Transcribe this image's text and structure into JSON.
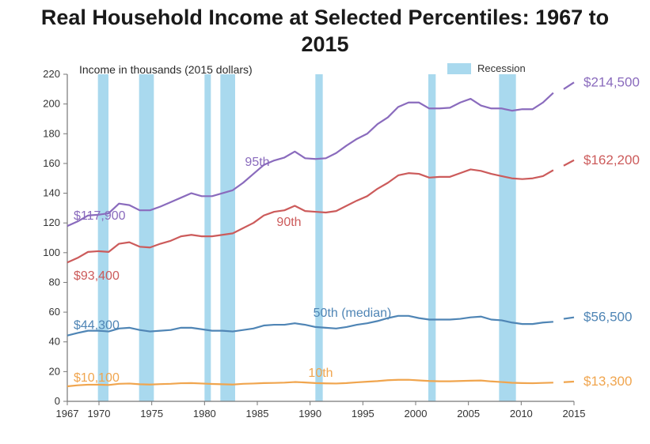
{
  "title": "Real Household Income at Selected Percentiles: 1967 to 2015",
  "subtitle": "Income in thousands (2015 dollars)",
  "legend": {
    "label": "Recession",
    "swatch_color": "#a9d9ee"
  },
  "chart": {
    "type": "line",
    "background_color": "#ffffff",
    "plot_bg": "#ffffff",
    "axis_color": "#777777",
    "tick_color": "#777777",
    "xlim": [
      1967,
      2015
    ],
    "ylim": [
      0,
      220
    ],
    "xticks": [
      1967,
      1970,
      1975,
      1980,
      1985,
      1990,
      1995,
      2000,
      2005,
      2010,
      2015
    ],
    "yticks": [
      0,
      20,
      40,
      60,
      80,
      100,
      120,
      140,
      160,
      180,
      200,
      220
    ],
    "line_width": 2.2,
    "recessions": [
      {
        "start": 1969.9,
        "end": 1970.9
      },
      {
        "start": 1973.8,
        "end": 1975.2
      },
      {
        "start": 1980.0,
        "end": 1980.6
      },
      {
        "start": 1981.5,
        "end": 1982.9
      },
      {
        "start": 1990.5,
        "end": 1991.2
      },
      {
        "start": 2001.2,
        "end": 2001.9
      },
      {
        "start": 2007.9,
        "end": 2009.5
      }
    ],
    "series": {
      "p95": {
        "name": "95th",
        "color": "#8a6bbd",
        "start_value_label": "$117,900",
        "end_value_label": "$214,500",
        "values": [
          117.9,
          121.0,
          125.0,
          125.5,
          126.5,
          133.0,
          132.0,
          128.5,
          128.5,
          131.0,
          134.0,
          137.0,
          140.0,
          138.0,
          138.0,
          140.0,
          142.0,
          147.0,
          153.0,
          159.0,
          162.0,
          164.0,
          168.0,
          163.5,
          163.0,
          163.5,
          167.0,
          172.0,
          176.5,
          180.0,
          186.5,
          191.0,
          198.0,
          201.0,
          201.0,
          197.0,
          197.0,
          197.5,
          201.0,
          203.5,
          199.0,
          197.0,
          197.0,
          195.5,
          196.5,
          196.5,
          201.0,
          207.5,
          210.0,
          214.5
        ]
      },
      "p90": {
        "name": "90th",
        "color": "#cc5b5b",
        "start_value_label": "$93,400",
        "end_value_label": "$162,200",
        "values": [
          93.4,
          96.5,
          100.5,
          101.0,
          100.5,
          106.0,
          107.0,
          104.0,
          103.5,
          106.0,
          108.0,
          111.0,
          112.0,
          111.0,
          111.0,
          112.0,
          113.0,
          116.5,
          120.0,
          125.0,
          127.5,
          128.5,
          131.5,
          128.0,
          127.5,
          127.0,
          128.0,
          131.5,
          135.0,
          138.0,
          143.0,
          147.0,
          152.0,
          153.5,
          153.0,
          150.5,
          151.0,
          151.0,
          153.5,
          156.0,
          155.0,
          153.0,
          151.5,
          150.0,
          149.5,
          150.0,
          151.5,
          155.5,
          158.5,
          162.2
        ]
      },
      "p50": {
        "name": "50th (median)",
        "color": "#4f85b5",
        "start_value_label": "$44,300",
        "end_value_label": "$56,500",
        "values": [
          44.3,
          46.0,
          47.5,
          47.5,
          47.0,
          49.0,
          49.5,
          48.0,
          47.0,
          47.5,
          48.0,
          49.5,
          49.5,
          48.5,
          47.5,
          47.5,
          47.0,
          48.0,
          49.0,
          51.0,
          51.5,
          51.5,
          52.5,
          51.5,
          50.0,
          49.5,
          49.0,
          50.0,
          51.5,
          52.5,
          54.0,
          56.0,
          57.5,
          57.5,
          56.0,
          55.0,
          55.0,
          55.0,
          55.5,
          56.5,
          57.0,
          55.0,
          54.5,
          53.0,
          52.0,
          52.0,
          53.0,
          53.5,
          55.5,
          56.5
        ]
      },
      "p10": {
        "name": "10th",
        "color": "#f0a54e",
        "start_value_label": "$10,100",
        "end_value_label": "$13,300",
        "values": [
          10.1,
          10.8,
          11.2,
          11.2,
          11.0,
          11.8,
          12.0,
          11.5,
          11.3,
          11.6,
          11.8,
          12.2,
          12.3,
          12.0,
          11.7,
          11.5,
          11.3,
          11.8,
          12.0,
          12.3,
          12.4,
          12.6,
          13.0,
          12.7,
          12.3,
          12.1,
          12.0,
          12.3,
          12.8,
          13.2,
          13.6,
          14.2,
          14.5,
          14.5,
          14.1,
          13.7,
          13.5,
          13.5,
          13.7,
          13.9,
          14.0,
          13.4,
          13.0,
          12.5,
          12.3,
          12.2,
          12.4,
          12.6,
          12.9,
          13.3
        ]
      }
    }
  }
}
